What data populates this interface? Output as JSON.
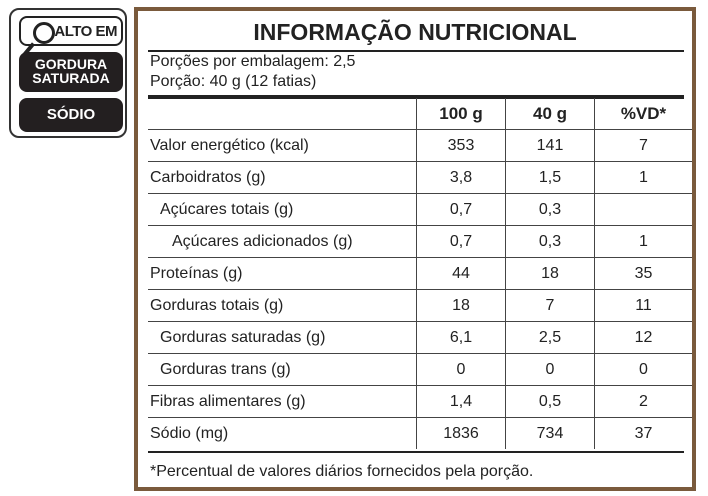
{
  "seal": {
    "header": "ALTO EM",
    "items": [
      "GORDURA SATURADA",
      "SÓDIO"
    ],
    "item_lines": [
      [
        "GORDURA",
        "SATURADA"
      ],
      [
        "SÓDIO"
      ]
    ]
  },
  "label": {
    "title": "INFORMAÇÃO NUTRICIONAL",
    "servings_per_package": "Porções por embalagem: 2,5",
    "serving_size": "Porção: 40 g (12 fatias)",
    "columns": [
      "",
      "100 g",
      "40 g",
      "%VD*"
    ],
    "rows": [
      {
        "name": "Valor energético (kcal)",
        "indent": 0,
        "per100": "353",
        "perServing": "141",
        "vd": "7"
      },
      {
        "name": "Carboidratos (g)",
        "indent": 0,
        "per100": "3,8",
        "perServing": "1,5",
        "vd": "1"
      },
      {
        "name": "Açúcares totais (g)",
        "indent": 1,
        "per100": "0,7",
        "perServing": "0,3",
        "vd": ""
      },
      {
        "name": "Açúcares adicionados (g)",
        "indent": 2,
        "per100": "0,7",
        "perServing": "0,3",
        "vd": "1"
      },
      {
        "name": "Proteínas (g)",
        "indent": 0,
        "per100": "44",
        "perServing": "18",
        "vd": "35"
      },
      {
        "name": "Gorduras totais (g)",
        "indent": 0,
        "per100": "18",
        "perServing": "7",
        "vd": "11"
      },
      {
        "name": "Gorduras saturadas (g)",
        "indent": 1,
        "per100": "6,1",
        "perServing": "2,5",
        "vd": "12"
      },
      {
        "name": "Gorduras trans (g)",
        "indent": 1,
        "per100": "0",
        "perServing": "0",
        "vd": "0"
      },
      {
        "name": "Fibras alimentares (g)",
        "indent": 0,
        "per100": "1,4",
        "perServing": "0,5",
        "vd": "2"
      },
      {
        "name": "Sódio (mg)",
        "indent": 0,
        "per100": "1836",
        "perServing": "734",
        "vd": "37"
      }
    ],
    "footnote": "*Percentual de valores diários fornecidos pela porção."
  },
  "colors": {
    "frame": "#7a5a3c",
    "seal_block": "#231f20"
  }
}
